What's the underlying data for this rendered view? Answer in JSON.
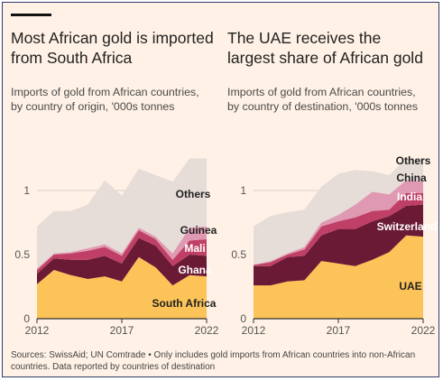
{
  "titles": {
    "left": "Most African gold is imported from South Africa",
    "right": "The UAE receives the largest share of African gold"
  },
  "subtitles": {
    "left": "Imports of gold from African countries, by country of origin, '000s tonnes",
    "right": "Imports of gold from African countries, by country of destination, '000s tonnes"
  },
  "source": "Sources: SwissAid; UN Comtrade • Only includes gold imports from African countries into non-African countries. Data reported by countries of destination",
  "chart_data": [
    {
      "type": "area",
      "title": "Most African gold is imported from South Africa",
      "subtitle": "Imports of gold from African countries, by country of origin, '000s tonnes",
      "x": [
        2012,
        2013,
        2014,
        2015,
        2016,
        2017,
        2018,
        2019,
        2020,
        2021,
        2022
      ],
      "x_ticks": [
        "2012",
        "2017",
        "2022"
      ],
      "y_ticks": [
        "0",
        "0.5",
        "1"
      ],
      "ylim": [
        0,
        1.35
      ],
      "stacked": true,
      "grid": true,
      "series": [
        {
          "name": "South Africa",
          "color": "#fcc358",
          "label_color": "#222222",
          "values": [
            0.27,
            0.38,
            0.34,
            0.31,
            0.33,
            0.29,
            0.48,
            0.4,
            0.26,
            0.34,
            0.33
          ]
        },
        {
          "name": "Ghana",
          "color": "#6b1a35",
          "label_color": "#ffffff",
          "values": [
            0.08,
            0.09,
            0.12,
            0.15,
            0.16,
            0.14,
            0.15,
            0.17,
            0.15,
            0.16,
            0.16
          ]
        },
        {
          "name": "Mali",
          "color": "#bf3f67",
          "label_color": "#ffffff",
          "values": [
            0.03,
            0.03,
            0.05,
            0.07,
            0.07,
            0.06,
            0.06,
            0.05,
            0.05,
            0.11,
            0.13
          ]
        },
        {
          "name": "Guinea",
          "color": "#e099b2",
          "label_color": "#222222",
          "values": [
            0.01,
            0.01,
            0.01,
            0.02,
            0.02,
            0.02,
            0.02,
            0.02,
            0.05,
            0.1,
            0.1
          ]
        },
        {
          "name": "Others",
          "color": "#e6dcd8",
          "label_color": "#222222",
          "values": [
            0.33,
            0.33,
            0.32,
            0.34,
            0.5,
            0.45,
            0.46,
            0.48,
            0.56,
            0.54,
            0.53
          ]
        }
      ]
    },
    {
      "type": "area",
      "title": "The UAE receives the largest share of African gold",
      "subtitle": "Imports of gold from African countries, by country of destination, '000s tonnes",
      "x": [
        2012,
        2013,
        2014,
        2015,
        2016,
        2017,
        2018,
        2019,
        2020,
        2021,
        2022
      ],
      "x_ticks": [
        "2012",
        "2017",
        "2022"
      ],
      "y_ticks": [
        "0",
        "0.5",
        "1"
      ],
      "ylim": [
        0,
        1.35
      ],
      "stacked": true,
      "grid": true,
      "series": [
        {
          "name": "UAE",
          "color": "#fcc358",
          "label_color": "#222222",
          "values": [
            0.26,
            0.26,
            0.29,
            0.3,
            0.45,
            0.43,
            0.41,
            0.46,
            0.52,
            0.65,
            0.64
          ]
        },
        {
          "name": "Switzerland",
          "color": "#6b1a35",
          "label_color": "#ffffff",
          "values": [
            0.15,
            0.15,
            0.19,
            0.19,
            0.2,
            0.27,
            0.29,
            0.3,
            0.28,
            0.23,
            0.25
          ]
        },
        {
          "name": "India",
          "color": "#bf3f67",
          "label_color": "#ffffff",
          "values": [
            0.01,
            0.03,
            0.02,
            0.05,
            0.07,
            0.06,
            0.09,
            0.08,
            0.05,
            0.1,
            0.09
          ]
        },
        {
          "name": "China",
          "color": "#e099b2",
          "label_color": "#222222",
          "values": [
            0.0,
            0.01,
            0.01,
            0.02,
            0.03,
            0.05,
            0.1,
            0.15,
            0.12,
            0.1,
            0.09
          ]
        },
        {
          "name": "Others",
          "color": "#e6dcd8",
          "label_color": "#222222",
          "values": [
            0.3,
            0.35,
            0.32,
            0.29,
            0.28,
            0.32,
            0.27,
            0.16,
            0.15,
            0.17,
            0.18
          ]
        }
      ]
    }
  ]
}
